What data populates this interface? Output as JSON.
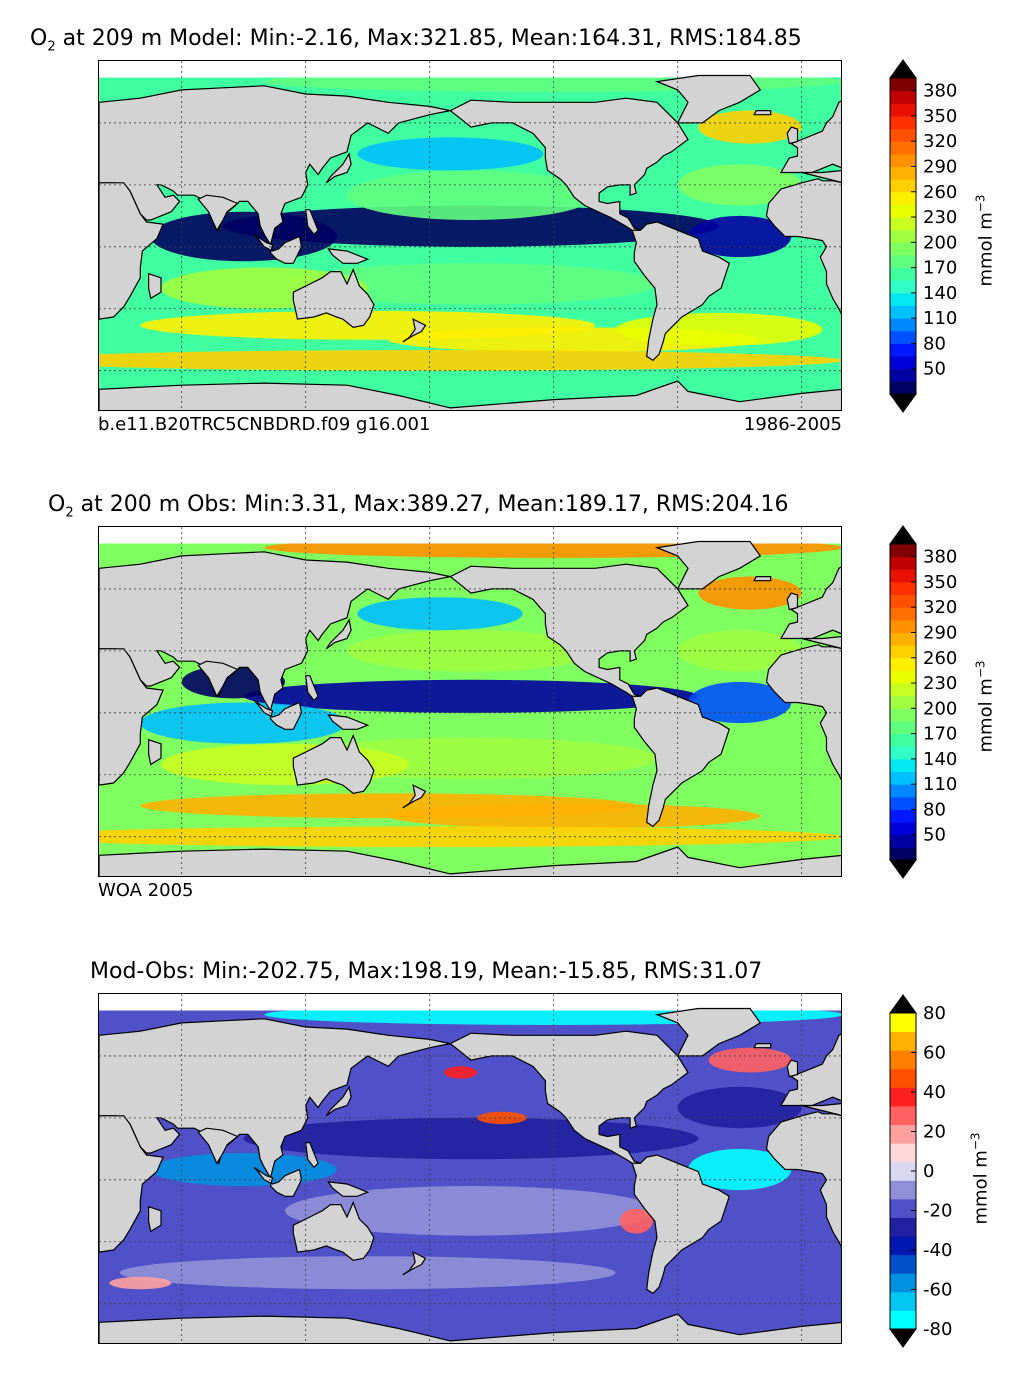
{
  "chart_data": [
    {
      "type": "heatmap",
      "title_symbol": "O",
      "title_sub": "2",
      "title_rest": " at 209 m Model: Min:-2.16, Max:321.85, Mean:164.31, RMS:184.85",
      "stats": {
        "depth_m": 209,
        "min": -2.16,
        "max": 321.85,
        "mean": 164.31,
        "rms": 184.85
      },
      "footer_left": "b.e11.B20TRC5CNBDRD.f09 g16.001",
      "footer_right": "1986-2005",
      "colorbar": {
        "label": "mmol m",
        "label_exp": "−3",
        "ticks": [
          "380",
          "350",
          "320",
          "290",
          "260",
          "230",
          "200",
          "170",
          "140",
          "110",
          "80",
          "50"
        ],
        "levels": [
          20,
          35,
          50,
          65,
          80,
          95,
          110,
          125,
          140,
          155,
          170,
          185,
          200,
          215,
          230,
          245,
          260,
          275,
          290,
          305,
          320,
          335,
          350,
          365,
          380,
          395
        ],
        "colors": [
          "#000060",
          "#0000a0",
          "#0000d8",
          "#0018ff",
          "#0050ff",
          "#0088ff",
          "#00c0ff",
          "#00e8f0",
          "#30ffc8",
          "#40ffa0",
          "#60ff80",
          "#80ff60",
          "#a0ff40",
          "#c8ff20",
          "#e8ff00",
          "#fff000",
          "#ffd000",
          "#ffb000",
          "#ff9000",
          "#ff7000",
          "#ff5000",
          "#ff3000",
          "#e81000",
          "#c00000",
          "#800000"
        ],
        "extend": "both"
      }
    },
    {
      "type": "heatmap",
      "title_symbol": "O",
      "title_sub": "2",
      "title_rest": " at 200 m Obs: Min:3.31, Max:389.27, Mean:189.17, RMS:204.16",
      "stats": {
        "depth_m": 200,
        "min": 3.31,
        "max": 389.27,
        "mean": 189.17,
        "rms": 204.16
      },
      "footer_left": "WOA 2005",
      "footer_right": "",
      "colorbar": {
        "label": "mmol m",
        "label_exp": "−3",
        "ticks": [
          "380",
          "350",
          "320",
          "290",
          "260",
          "230",
          "200",
          "170",
          "140",
          "110",
          "80",
          "50"
        ],
        "levels": [
          20,
          35,
          50,
          65,
          80,
          95,
          110,
          125,
          140,
          155,
          170,
          185,
          200,
          215,
          230,
          245,
          260,
          275,
          290,
          305,
          320,
          335,
          350,
          365,
          380,
          395
        ],
        "colors": [
          "#000060",
          "#0000a0",
          "#0000d8",
          "#0018ff",
          "#0050ff",
          "#0088ff",
          "#00c0ff",
          "#00e8f0",
          "#30ffc8",
          "#40ffa0",
          "#60ff80",
          "#80ff60",
          "#a0ff40",
          "#c8ff20",
          "#e8ff00",
          "#fff000",
          "#ffd000",
          "#ffb000",
          "#ff9000",
          "#ff7000",
          "#ff5000",
          "#ff3000",
          "#e81000",
          "#c00000",
          "#800000"
        ],
        "extend": "both"
      }
    },
    {
      "type": "heatmap",
      "title_symbol": "",
      "title_sub": "",
      "title_rest": "Mod-Obs: Min:-202.75, Max:198.19, Mean:-15.85, RMS:31.07",
      "stats": {
        "min": -202.75,
        "max": 198.19,
        "mean": -15.85,
        "rms": 31.07
      },
      "footer_left": "",
      "footer_right": "",
      "colorbar": {
        "label": "mmol m",
        "label_exp": "−3",
        "ticks": [
          "80",
          "60",
          "40",
          "20",
          "0",
          "-20",
          "-40",
          "-60",
          "-80"
        ],
        "levels": [
          -80,
          -70,
          -60,
          -50,
          -40,
          -30,
          -20,
          -10,
          0,
          10,
          20,
          30,
          40,
          50,
          60,
          70,
          80
        ],
        "colors": [
          "#00ffff",
          "#00c8f0",
          "#0090e0",
          "#0050c8",
          "#0018b0",
          "#2020a0",
          "#5050c8",
          "#9090d8",
          "#d8d8f0",
          "#ffd8d8",
          "#ffa0a0",
          "#ff6060",
          "#ff2020",
          "#ff5000",
          "#ff8000",
          "#ffb000",
          "#ffff00"
        ],
        "extend": "both"
      }
    }
  ],
  "map_colors": {
    "land": "#d3d3d3",
    "coast": "#000000",
    "grid": "#404040",
    "ice_white": "#ffffff"
  }
}
